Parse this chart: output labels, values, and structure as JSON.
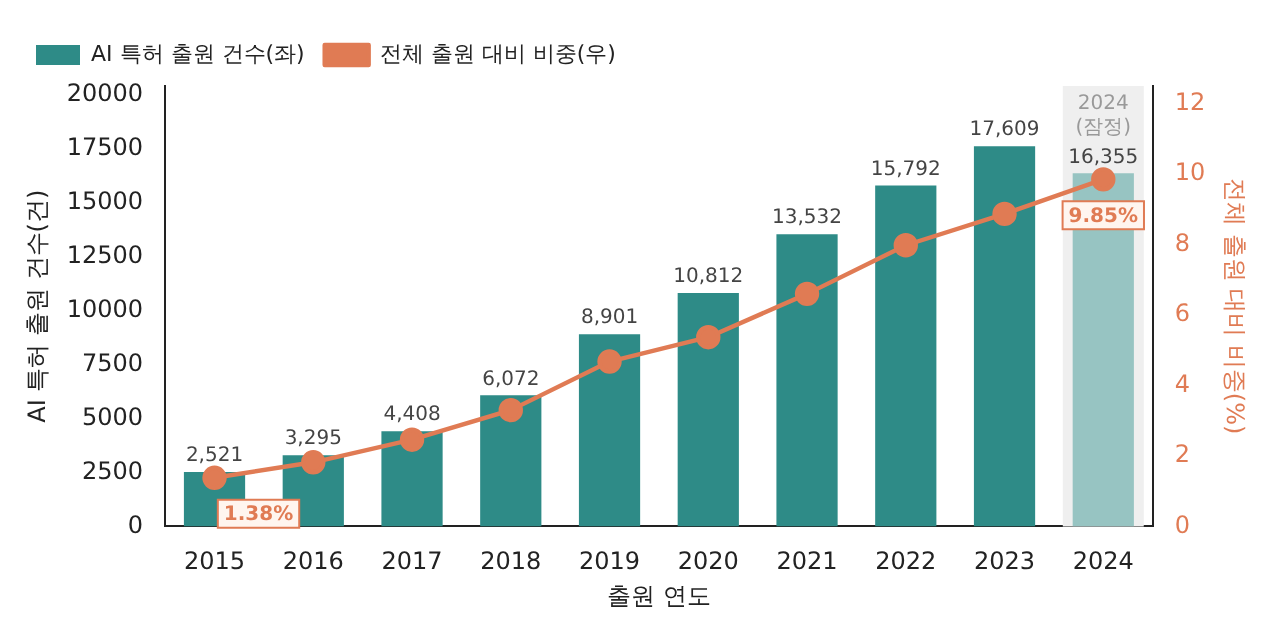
{
  "chart_data": {
    "type": "bar",
    "categories": [
      "2015",
      "2016",
      "2017",
      "2018",
      "2019",
      "2020",
      "2021",
      "2022",
      "2023",
      "2024"
    ],
    "series": [
      {
        "name": "AI 특허 출원 건수(좌)",
        "colors": [
          "#2e8b87",
          "#2e8b87",
          "#2e8b87",
          "#2e8b87",
          "#2e8b87",
          "#2e8b87",
          "#2e8b87",
          "#2e8b87",
          "#2e8b87",
          "#97c4c2"
        ],
        "values": [
          2521,
          3295,
          4408,
          6072,
          8901,
          10812,
          13532,
          15792,
          17609,
          16355
        ],
        "value_labels": [
          "2,521",
          "3,295",
          "4,408",
          "6,072",
          "8,901",
          "10,812",
          "13,532",
          "15,792",
          "17,609",
          "16,355"
        ]
      },
      {
        "name": "전체 출원 대비 비중(우)",
        "type": "line",
        "axis": "y2",
        "color": "#e07b54",
        "values": [
          1.38,
          1.82,
          2.46,
          3.3,
          4.68,
          5.37,
          6.6,
          7.98,
          8.87,
          9.85
        ],
        "value_labels": [
          "1.38%",
          null,
          null,
          null,
          null,
          null,
          null,
          null,
          null,
          "9.85%"
        ]
      }
    ],
    "xlabel": "출원 연도",
    "ylabel": "AI 특허 출원 건수(건)",
    "y2label": "전체 출원 대비 비중(%)",
    "ylim": [
      0,
      20400
    ],
    "yticks": [
      0,
      2500,
      5000,
      7500,
      10000,
      12500,
      15000,
      17500,
      20000
    ],
    "y2lim": [
      0,
      12.5
    ],
    "y2ticks": [
      0,
      2,
      4,
      6,
      8,
      10,
      12
    ],
    "bands": [
      {
        "axis": "x",
        "from": "2024",
        "to": "2024",
        "label": "2024\n(잠정)",
        "color": "#efefef"
      }
    ],
    "marker": "circle",
    "legend": "top left",
    "grid": false
  }
}
